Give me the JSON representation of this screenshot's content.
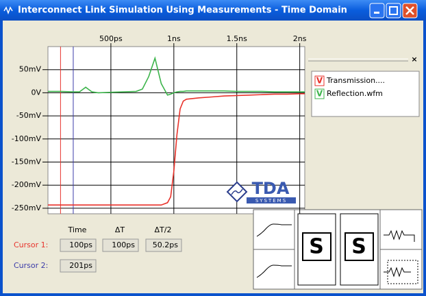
{
  "window": {
    "title": "Interconnect Link Simulation Using Measurements - Time Domain"
  },
  "chart_data": {
    "type": "line",
    "x": [
      0,
      100,
      200,
      250,
      300,
      350,
      400,
      500,
      600,
      700,
      750,
      800,
      850,
      900,
      950,
      975,
      1000,
      1025,
      1050,
      1075,
      1100,
      1200,
      1300,
      1400,
      1500,
      1600,
      1700,
      1800,
      1900,
      2000,
      2040
    ],
    "series": [
      {
        "name": "Transmission....",
        "color": "#e8322a",
        "values": [
          -243,
          -243,
          -243,
          -243,
          -243,
          -243,
          -243,
          -243,
          -243,
          -243,
          -243,
          -243,
          -243,
          -243,
          -238,
          -225,
          -170,
          -90,
          -35,
          -18,
          -14,
          -11,
          -9,
          -7,
          -6,
          -5,
          -4,
          -3,
          -3,
          -2,
          -2
        ]
      },
      {
        "name": "Reflection.wfm",
        "color": "#3cb44b",
        "values": [
          3,
          3,
          2,
          2,
          12,
          2,
          0,
          1,
          2,
          3,
          8,
          35,
          75,
          20,
          -5,
          -3,
          0,
          2,
          3,
          3,
          4,
          4,
          4,
          4,
          3,
          3,
          3,
          2,
          2,
          2,
          2
        ]
      }
    ],
    "xlim": [
      0,
      2040
    ],
    "xticks": [
      {
        "value": 500,
        "label": "500ps"
      },
      {
        "value": 1000,
        "label": "1ns"
      },
      {
        "value": 1500,
        "label": "1.5ns"
      },
      {
        "value": 2000,
        "label": "2ns"
      }
    ],
    "ylim": [
      -262,
      100
    ],
    "yticks": [
      {
        "value": 50,
        "label": "50mV"
      },
      {
        "value": 0,
        "label": "0V"
      },
      {
        "value": -50,
        "label": "-50mV"
      },
      {
        "value": -100,
        "label": "-100mV"
      },
      {
        "value": -150,
        "label": "-150mV"
      },
      {
        "value": -200,
        "label": "-200mV"
      },
      {
        "value": -250,
        "label": "-250mV"
      }
    ],
    "grid": true,
    "legend_icon": "V",
    "cursors": [
      {
        "x": 100,
        "color": "#e8322a"
      },
      {
        "x": 201,
        "color": "#3a3aa8"
      }
    ]
  },
  "logo": {
    "text": "TDA",
    "subtext": "SYSTEMS"
  },
  "cursor_table": {
    "headers": [
      "Time",
      "ΔT",
      "ΔT/2"
    ],
    "rows": [
      {
        "label": "Cursor 1:",
        "values": [
          "100ps",
          "100ps",
          "50.2ps"
        ]
      },
      {
        "label": "Cursor 2:",
        "values": [
          "201ps"
        ]
      }
    ]
  },
  "diagram": {
    "blocks": [
      "S",
      "S"
    ]
  }
}
